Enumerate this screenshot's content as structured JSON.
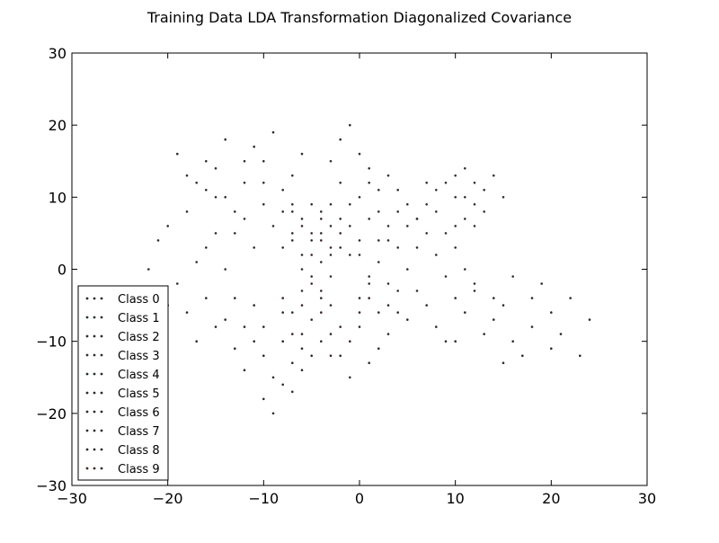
{
  "chart_data": {
    "type": "scatter",
    "title": "Training Data LDA Transformation Diagonalized Covariance",
    "xlabel": "",
    "ylabel": "",
    "xlim": [
      -30,
      30
    ],
    "ylim": [
      -30,
      30
    ],
    "xticks": [
      -30,
      -20,
      -10,
      0,
      10,
      20,
      30
    ],
    "yticks": [
      -30,
      -20,
      -10,
      0,
      10,
      20,
      30
    ],
    "xtick_labels": [
      "−30",
      "−20",
      "−10",
      "0",
      "10",
      "20",
      "30"
    ],
    "ytick_labels": [
      "−30",
      "−20",
      "−10",
      "0",
      "10",
      "20",
      "30"
    ],
    "grid": false,
    "legend_position": "lower-left",
    "series": [
      {
        "name": "Class 0",
        "color": "#2b2b2b",
        "points": [
          [
            -12,
            12
          ],
          [
            -10,
            15
          ],
          [
            -8,
            8
          ],
          [
            -14,
            10
          ],
          [
            -9,
            6
          ],
          [
            -11,
            17
          ],
          [
            -13,
            5
          ],
          [
            -7,
            13
          ],
          [
            -10,
            9
          ],
          [
            -12,
            7
          ],
          [
            -15,
            14
          ],
          [
            -8,
            11
          ],
          [
            -9,
            19
          ],
          [
            -11,
            3
          ],
          [
            -16,
            11
          ],
          [
            -6,
            16
          ],
          [
            -10,
            12
          ],
          [
            -13,
            8
          ],
          [
            -7,
            9
          ],
          [
            -12,
            15
          ]
        ]
      },
      {
        "name": "Class 1",
        "color": "#26352b",
        "points": [
          [
            10,
            10
          ],
          [
            12,
            12
          ],
          [
            8,
            8
          ],
          [
            11,
            7
          ],
          [
            13,
            11
          ],
          [
            9,
            12
          ],
          [
            7,
            9
          ],
          [
            14,
            13
          ],
          [
            10,
            6
          ],
          [
            12,
            9
          ],
          [
            8,
            11
          ],
          [
            11,
            14
          ],
          [
            6,
            7
          ],
          [
            13,
            8
          ],
          [
            9,
            5
          ],
          [
            15,
            10
          ],
          [
            10,
            13
          ],
          [
            12,
            6
          ],
          [
            7,
            12
          ],
          [
            11,
            10
          ]
        ]
      },
      {
        "name": "Class 2",
        "color": "#2e2a26",
        "points": [
          [
            -5,
            4
          ],
          [
            -3,
            6
          ],
          [
            -6,
            2
          ],
          [
            -4,
            8
          ],
          [
            -2,
            3
          ],
          [
            -7,
            5
          ],
          [
            -1,
            6
          ],
          [
            -4,
            1
          ],
          [
            -6,
            7
          ],
          [
            -3,
            2
          ],
          [
            -5,
            9
          ],
          [
            0,
            4
          ],
          [
            -8,
            3
          ],
          [
            -2,
            7
          ],
          [
            -4,
            5
          ],
          [
            -6,
            0
          ],
          [
            -1,
            2
          ],
          [
            -3,
            9
          ],
          [
            -7,
            8
          ],
          [
            -5,
            -1
          ]
        ]
      },
      {
        "name": "Class 3",
        "color": "#2c2f2c",
        "points": [
          [
            -3,
            -5
          ],
          [
            0,
            -8
          ],
          [
            -6,
            -3
          ],
          [
            2,
            -6
          ],
          [
            -4,
            -10
          ],
          [
            1,
            -2
          ],
          [
            -2,
            -12
          ],
          [
            3,
            -9
          ],
          [
            -5,
            -7
          ],
          [
            0,
            -4
          ],
          [
            -7,
            -6
          ],
          [
            4,
            -3
          ],
          [
            -1,
            -15
          ],
          [
            2,
            -11
          ],
          [
            -3,
            -1
          ],
          [
            5,
            -7
          ],
          [
            -6,
            -11
          ],
          [
            1,
            -13
          ],
          [
            -4,
            -4
          ],
          [
            3,
            -5
          ]
        ]
      },
      {
        "name": "Class 4",
        "color": "#23302a",
        "points": [
          [
            15,
            -5
          ],
          [
            18,
            -8
          ],
          [
            12,
            -3
          ],
          [
            20,
            -6
          ],
          [
            16,
            -10
          ],
          [
            14,
            -7
          ],
          [
            22,
            -4
          ],
          [
            17,
            -12
          ],
          [
            13,
            -9
          ],
          [
            19,
            -2
          ],
          [
            24,
            -7
          ],
          [
            11,
            -6
          ],
          [
            18,
            -4
          ],
          [
            21,
            -9
          ],
          [
            15,
            -13
          ],
          [
            10,
            -10
          ],
          [
            23,
            -12
          ],
          [
            16,
            -1
          ],
          [
            20,
            -11
          ],
          [
            14,
            -4
          ]
        ]
      },
      {
        "name": "Class 5",
        "color": "#2a2a2a",
        "points": [
          [
            -10,
            -12
          ],
          [
            -8,
            -10
          ],
          [
            -12,
            -8
          ],
          [
            -9,
            -15
          ],
          [
            -11,
            -5
          ],
          [
            -7,
            -13
          ],
          [
            -13,
            -11
          ],
          [
            -6,
            -9
          ],
          [
            -10,
            -18
          ],
          [
            -8,
            -6
          ],
          [
            -12,
            -14
          ],
          [
            -5,
            -12
          ],
          [
            -14,
            -7
          ],
          [
            -9,
            -20
          ],
          [
            -11,
            -10
          ],
          [
            -7,
            -17
          ],
          [
            -13,
            -4
          ],
          [
            -6,
            -14
          ],
          [
            -10,
            -8
          ],
          [
            -8,
            -16
          ]
        ]
      },
      {
        "name": "Class 6",
        "color": "#302a28",
        "points": [
          [
            -18,
            13
          ],
          [
            -16,
            15
          ],
          [
            -19,
            16
          ],
          [
            -15,
            10
          ],
          [
            -17,
            12
          ],
          [
            -14,
            18
          ],
          [
            -20,
            6
          ],
          [
            -16,
            3
          ],
          [
            -18,
            8
          ],
          [
            -21,
            4
          ],
          [
            -15,
            5
          ],
          [
            -17,
            1
          ],
          [
            -19,
            -2
          ],
          [
            -22,
            0
          ],
          [
            -16,
            -4
          ],
          [
            -14,
            0
          ],
          [
            -18,
            -6
          ],
          [
            -20,
            -5
          ],
          [
            -15,
            -8
          ],
          [
            -17,
            -10
          ]
        ]
      },
      {
        "name": "Class 7",
        "color": "#283028",
        "points": [
          [
            5,
            0
          ],
          [
            8,
            2
          ],
          [
            3,
            4
          ],
          [
            6,
            -3
          ],
          [
            9,
            -1
          ],
          [
            4,
            -6
          ],
          [
            7,
            5
          ],
          [
            2,
            1
          ],
          [
            10,
            -4
          ],
          [
            5,
            6
          ],
          [
            8,
            -8
          ],
          [
            3,
            -2
          ],
          [
            11,
            0
          ],
          [
            6,
            3
          ],
          [
            9,
            -10
          ],
          [
            4,
            8
          ],
          [
            12,
            -2
          ],
          [
            7,
            -5
          ],
          [
            1,
            -1
          ],
          [
            10,
            3
          ]
        ]
      },
      {
        "name": "Class 8",
        "color": "#2b2d2e",
        "points": [
          [
            0,
            10
          ],
          [
            2,
            8
          ],
          [
            -2,
            12
          ],
          [
            3,
            6
          ],
          [
            1,
            14
          ],
          [
            -1,
            9
          ],
          [
            4,
            11
          ],
          [
            0,
            16
          ],
          [
            2,
            4
          ],
          [
            -3,
            15
          ],
          [
            5,
            9
          ],
          [
            1,
            7
          ],
          [
            -2,
            18
          ],
          [
            3,
            13
          ],
          [
            0,
            2
          ],
          [
            6,
            7
          ],
          [
            -1,
            20
          ],
          [
            2,
            11
          ],
          [
            4,
            3
          ],
          [
            1,
            12
          ]
        ]
      },
      {
        "name": "Class 9",
        "color": "#3a2622",
        "points": [
          [
            -5,
            5
          ],
          [
            -4,
            4
          ],
          [
            -6,
            6
          ],
          [
            -3,
            3
          ],
          [
            -5,
            2
          ],
          [
            -4,
            7
          ],
          [
            -7,
            4
          ],
          [
            -2,
            5
          ],
          [
            -5,
            -2
          ],
          [
            -4,
            -6
          ],
          [
            -3,
            -9
          ],
          [
            -6,
            -5
          ],
          [
            -2,
            -8
          ],
          [
            0,
            -6
          ],
          [
            -1,
            -10
          ],
          [
            -8,
            -4
          ],
          [
            -3,
            -12
          ],
          [
            -7,
            -9
          ],
          [
            1,
            -4
          ],
          [
            -4,
            -3
          ]
        ]
      }
    ]
  }
}
